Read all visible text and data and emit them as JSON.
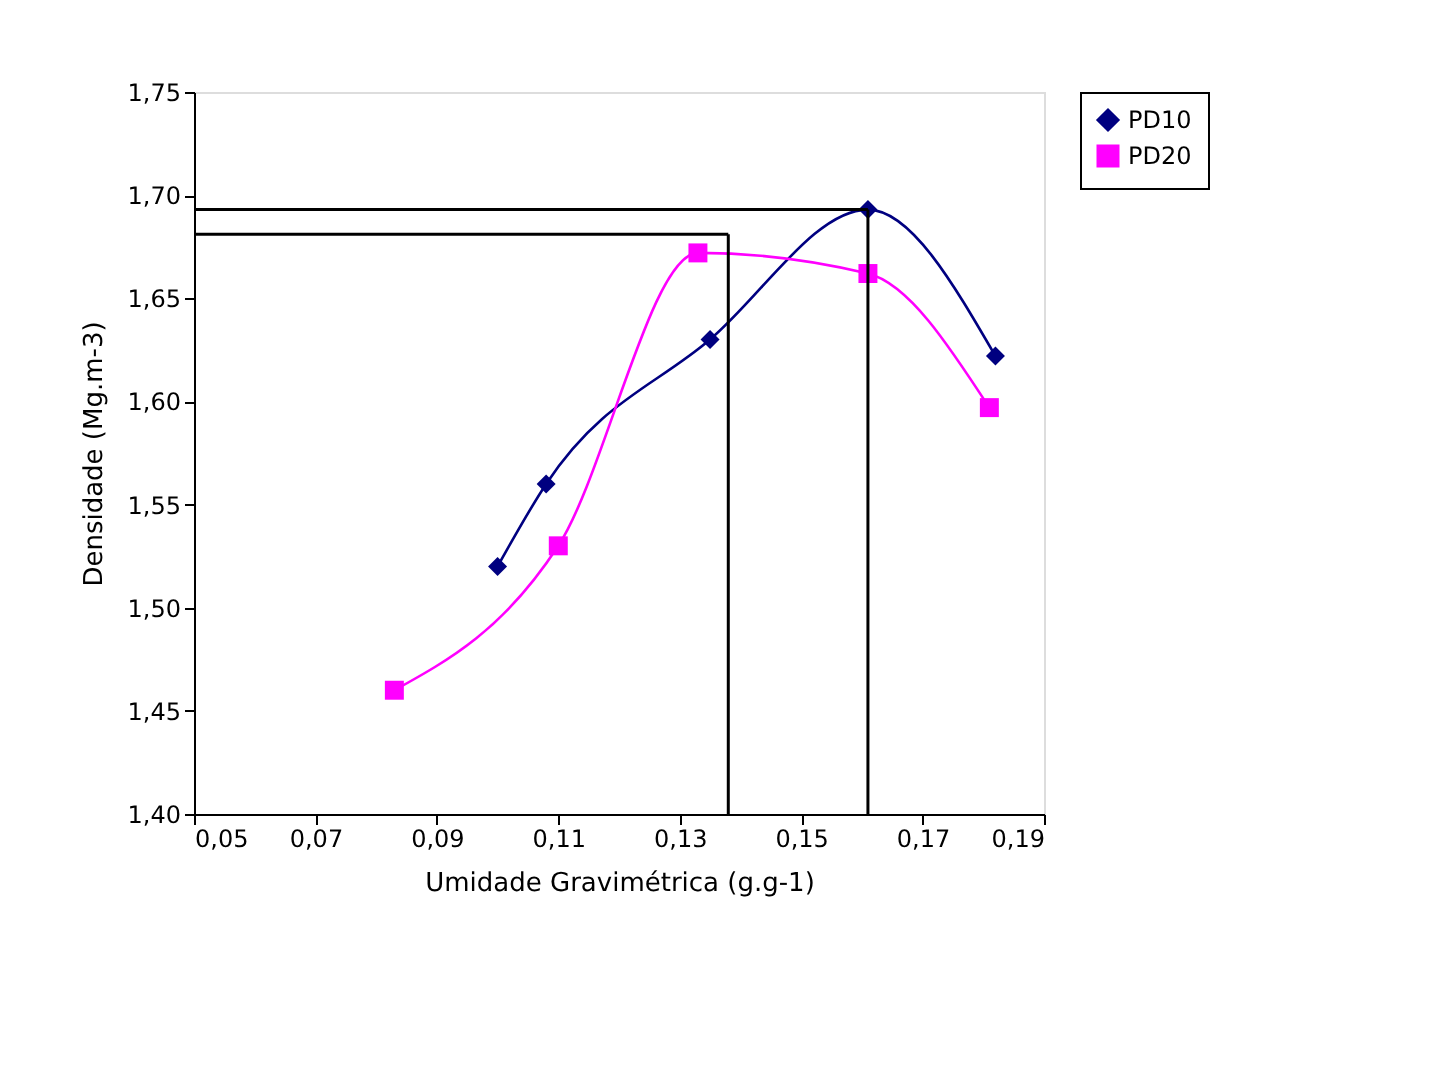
{
  "chart_data": {
    "type": "line",
    "xlabel": "Umidade Gravimétrica (g.g-1)",
    "ylabel": "Densidade (Mg.m-3)",
    "xlim": [
      0.05,
      0.19
    ],
    "xticks": [
      {
        "value": 0.05,
        "label": "0,05"
      },
      {
        "value": 0.07,
        "label": "0,07"
      },
      {
        "value": 0.09,
        "label": "0,09"
      },
      {
        "value": 0.11,
        "label": "0,11"
      },
      {
        "value": 0.13,
        "label": "0,13"
      },
      {
        "value": 0.15,
        "label": "0,15"
      },
      {
        "value": 0.17,
        "label": "0,17"
      },
      {
        "value": 0.19,
        "label": "0,19"
      }
    ],
    "ylim": [
      1.4,
      1.75
    ],
    "yticks": [
      {
        "value": 1.4,
        "label": "1,40"
      },
      {
        "value": 1.45,
        "label": "1,45"
      },
      {
        "value": 1.5,
        "label": "1,50"
      },
      {
        "value": 1.55,
        "label": "1,55"
      },
      {
        "value": 1.6,
        "label": "1,60"
      },
      {
        "value": 1.65,
        "label": "1,65"
      },
      {
        "value": 1.7,
        "label": "1,70"
      },
      {
        "value": 1.75,
        "label": "1,75"
      }
    ],
    "grid": false,
    "legend": "right",
    "line_style": "solid",
    "series": [
      {
        "name": "PD10",
        "color": "#000080",
        "marker": "diamond",
        "x": [
          0.1,
          0.108,
          0.135,
          0.161,
          0.182
        ],
        "values": [
          1.52,
          1.56,
          1.63,
          1.693,
          1.622
        ]
      },
      {
        "name": "PD20",
        "color": "#ff00ff",
        "marker": "square",
        "x": [
          0.083,
          0.11,
          0.133,
          0.161,
          0.181
        ],
        "values": [
          1.46,
          1.53,
          1.672,
          1.662,
          1.597
        ]
      }
    ],
    "ref_lines": [
      {
        "axis": "y",
        "value": 1.693,
        "color": "#000000"
      },
      {
        "axis": "x",
        "value": 0.161,
        "color": "#000000"
      },
      {
        "axis": "y",
        "value": 1.681,
        "color": "#000000"
      },
      {
        "axis": "x",
        "value": 0.138,
        "color": "#000000"
      }
    ]
  }
}
